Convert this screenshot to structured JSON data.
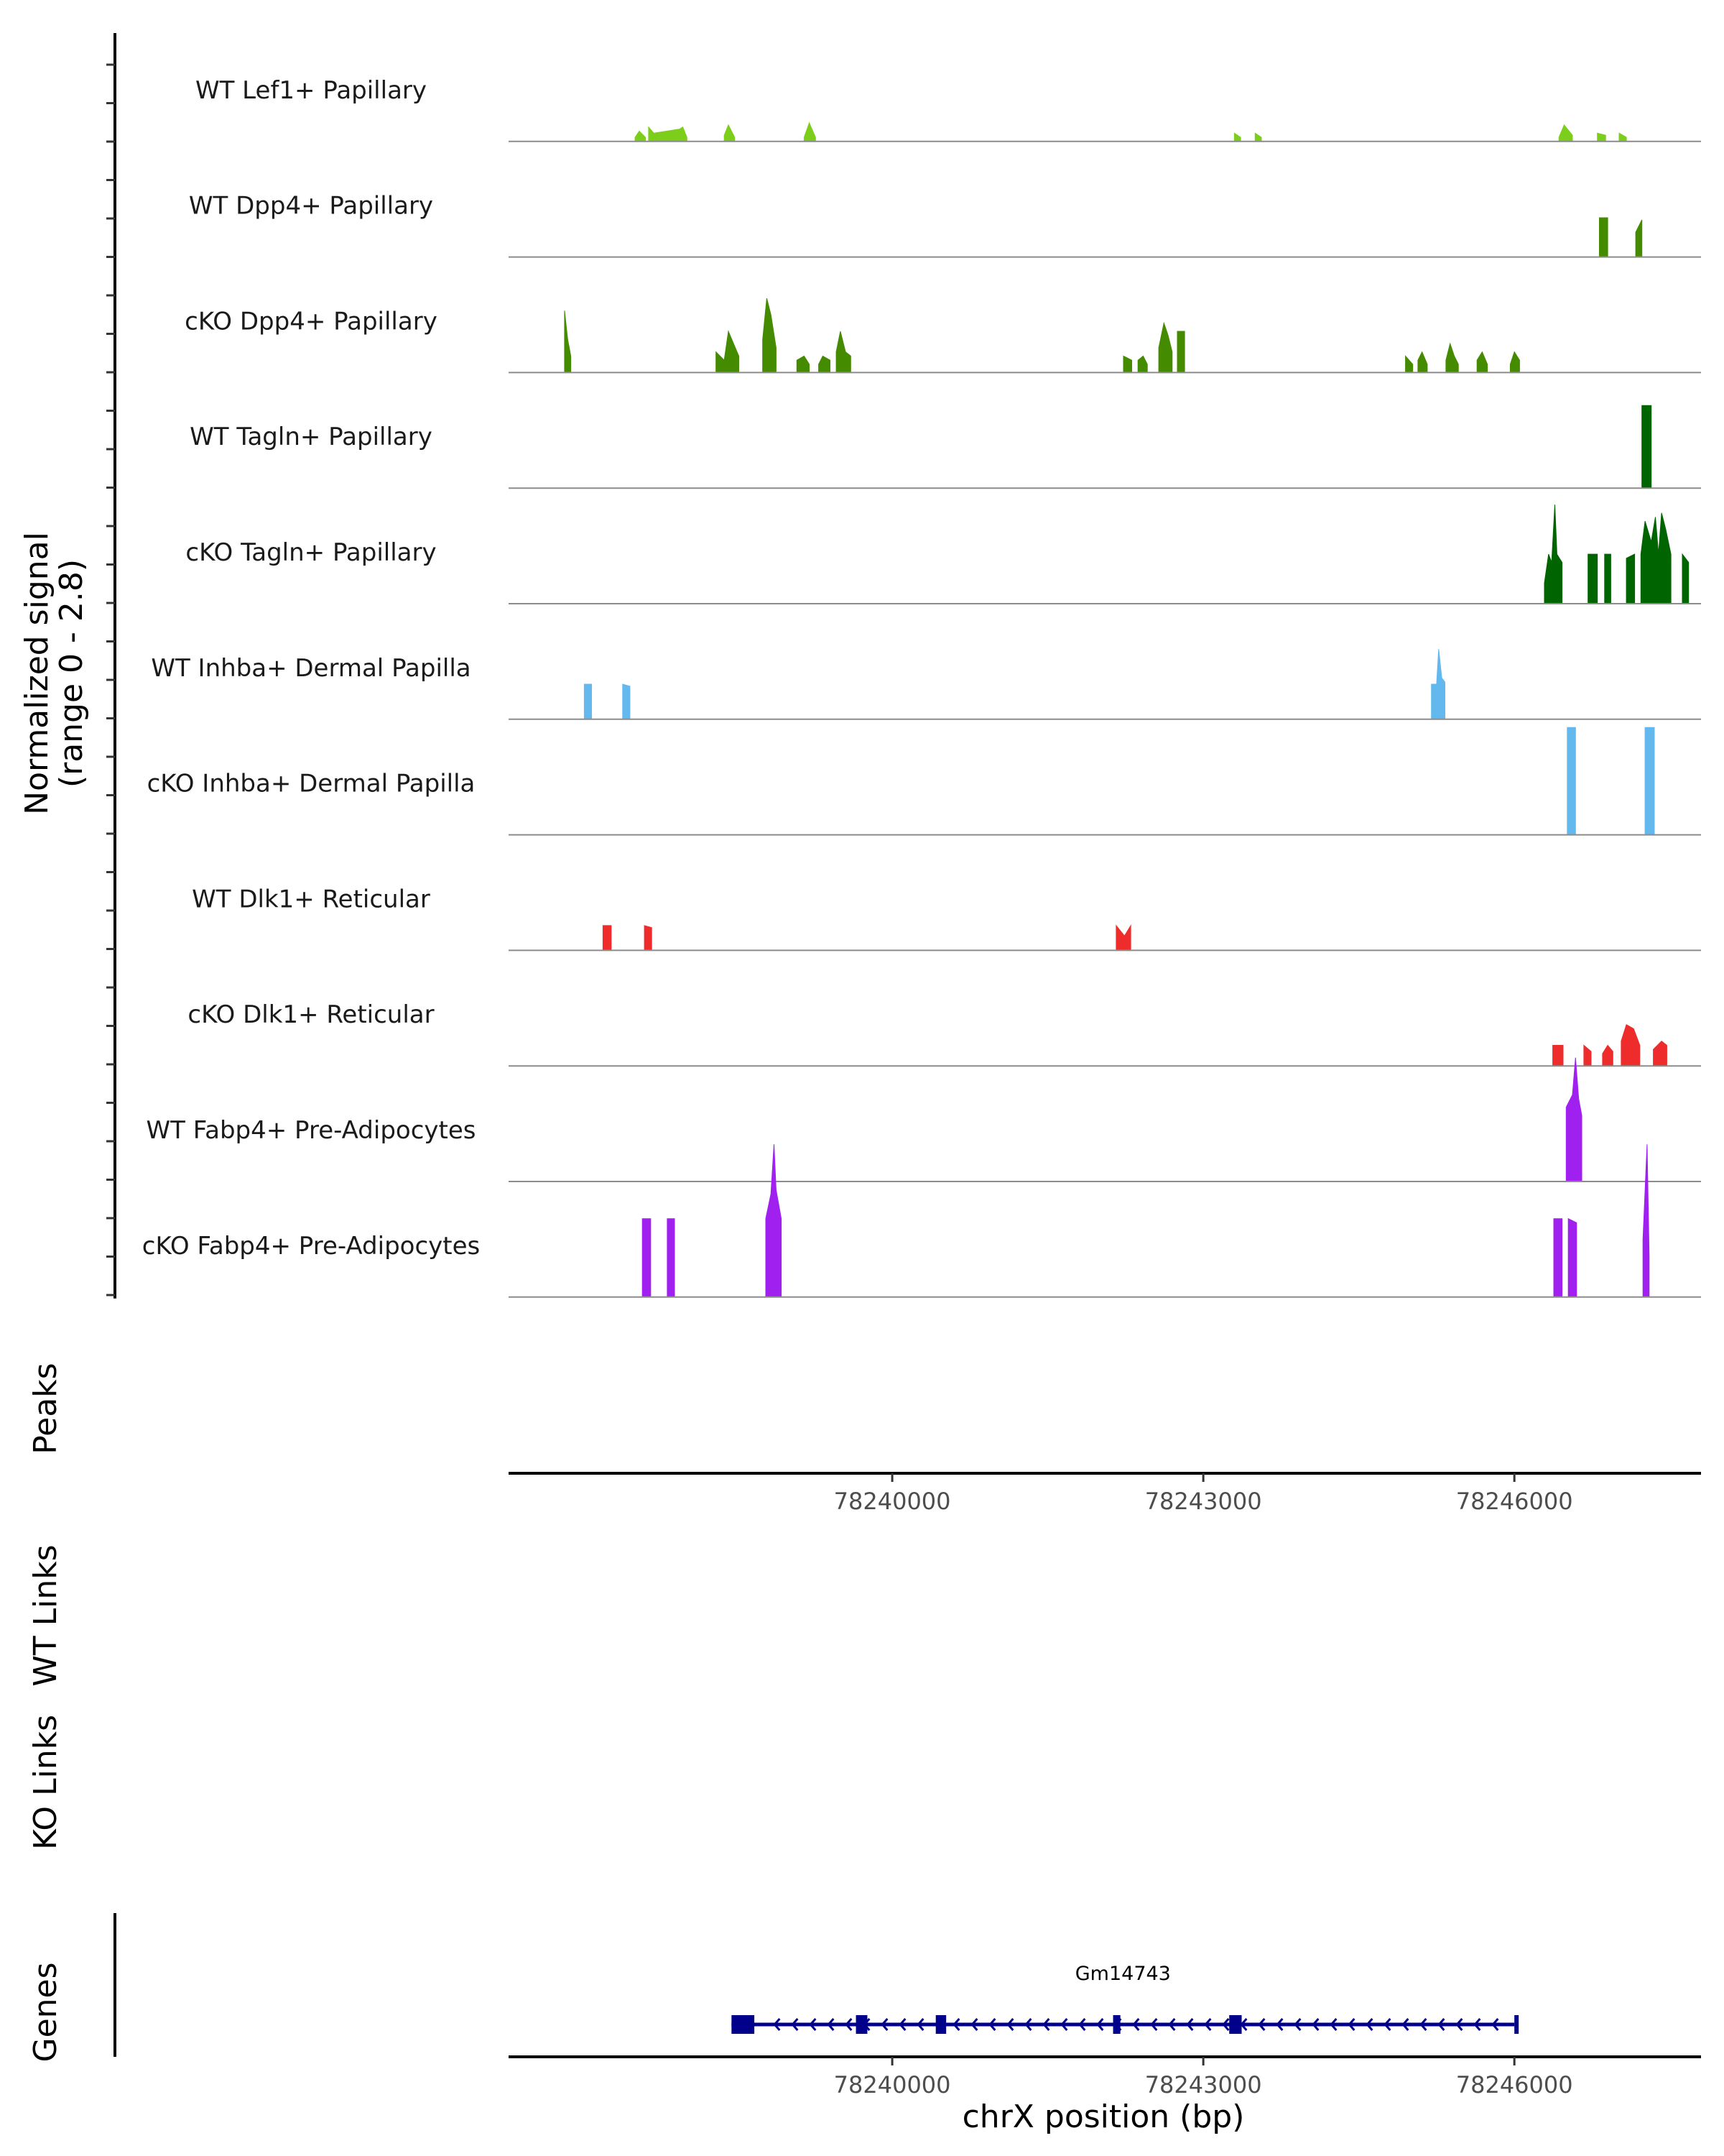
{
  "chart_data": {
    "type": "coverage",
    "ylabel_line1": "Normalized signal",
    "ylabel_line2": "(range 0 - 2.8)",
    "ymax": 2.8,
    "xlim": [
      78236300,
      78247800
    ],
    "chromosome": "chrX",
    "xlabel": "chrX position (bp)",
    "xticks": [
      78240000,
      78243000,
      78246000
    ],
    "xtick_labels": [
      "78240000",
      "78243000",
      "78246000"
    ],
    "tracks": [
      {
        "name": "WT Lef1+ Papillary",
        "color": "#7CCD1C",
        "segments": [
          [
            [
              78237520,
              0.1
            ],
            [
              78237560,
              0.25
            ],
            [
              78237620,
              0.1
            ]
          ],
          [
            [
              78237650,
              0.35
            ],
            [
              78237700,
              0.2
            ],
            [
              78237950,
              0.3
            ],
            [
              78237980,
              0.35
            ],
            [
              78238020,
              0.1
            ]
          ],
          [
            [
              78238380,
              0.15
            ],
            [
              78238420,
              0.4
            ],
            [
              78238480,
              0.1
            ]
          ],
          [
            [
              78239150,
              0.1
            ],
            [
              78239200,
              0.45
            ],
            [
              78239260,
              0.1
            ]
          ],
          [
            [
              78243300,
              0.2
            ],
            [
              78243360,
              0.1
            ]
          ],
          [
            [
              78243500,
              0.2
            ],
            [
              78243560,
              0.1
            ]
          ],
          [
            [
              78246430,
              0.1
            ],
            [
              78246480,
              0.4
            ],
            [
              78246560,
              0.15
            ]
          ],
          [
            [
              78246800,
              0.2
            ],
            [
              78246880,
              0.15
            ]
          ],
          [
            [
              78247010,
              0.2
            ],
            [
              78247080,
              0.1
            ]
          ]
        ]
      },
      {
        "name": "WT Dpp4+ Papillary",
        "color": "#458B00",
        "segments": [
          [
            [
              78246820,
              0.95
            ],
            [
              78246900,
              0.95
            ]
          ],
          [
            [
              78247170,
              0.6
            ],
            [
              78247230,
              0.9
            ]
          ]
        ]
      },
      {
        "name": "cKO Dpp4+ Papillary",
        "color": "#458B00",
        "segments": [
          [
            [
              78236840,
              1.5
            ],
            [
              78236870,
              0.8
            ],
            [
              78236900,
              0.4
            ]
          ],
          [
            [
              78238300,
              0.5
            ],
            [
              78238380,
              0.3
            ],
            [
              78238420,
              1.0
            ],
            [
              78238470,
              0.7
            ],
            [
              78238520,
              0.4
            ]
          ],
          [
            [
              78238750,
              0.8
            ],
            [
              78238790,
              1.8
            ],
            [
              78238830,
              1.4
            ],
            [
              78238880,
              0.6
            ]
          ],
          [
            [
              78239080,
              0.3
            ],
            [
              78239150,
              0.4
            ],
            [
              78239200,
              0.2
            ]
          ],
          [
            [
              78239290,
              0.2
            ],
            [
              78239330,
              0.4
            ],
            [
              78239400,
              0.3
            ]
          ],
          [
            [
              78239460,
              0.5
            ],
            [
              78239500,
              1.0
            ],
            [
              78239550,
              0.5
            ],
            [
              78239600,
              0.4
            ]
          ],
          [
            [
              78242230,
              0.4
            ],
            [
              78242310,
              0.3
            ]
          ],
          [
            [
              78242370,
              0.3
            ],
            [
              78242420,
              0.4
            ],
            [
              78242460,
              0.2
            ]
          ],
          [
            [
              78242570,
              0.6
            ],
            [
              78242620,
              1.2
            ],
            [
              78242660,
              0.9
            ],
            [
              78242700,
              0.5
            ]
          ],
          [
            [
              78242750,
              1.0
            ],
            [
              78242820,
              1.0
            ]
          ],
          [
            [
              78244950,
              0.4
            ],
            [
              78245020,
              0.2
            ]
          ],
          [
            [
              78245070,
              0.3
            ],
            [
              78245110,
              0.5
            ],
            [
              78245160,
              0.2
            ]
          ],
          [
            [
              78245340,
              0.3
            ],
            [
              78245380,
              0.7
            ],
            [
              78245420,
              0.4
            ],
            [
              78245460,
              0.2
            ]
          ],
          [
            [
              78245640,
              0.3
            ],
            [
              78245690,
              0.5
            ],
            [
              78245740,
              0.2
            ]
          ],
          [
            [
              78245960,
              0.2
            ],
            [
              78246000,
              0.5
            ],
            [
              78246050,
              0.3
            ]
          ]
        ]
      },
      {
        "name": "WT Tagln+ Papillary",
        "color": "#006400",
        "segments": [
          [
            [
              78247230,
              2.0
            ],
            [
              78247320,
              2.0
            ]
          ]
        ]
      },
      {
        "name": "cKO Tagln+ Papillary",
        "color": "#006400",
        "segments": [
          [
            [
              78246290,
              0.5
            ],
            [
              78246330,
              1.2
            ],
            [
              78246360,
              1.0
            ],
            [
              78246390,
              2.4
            ],
            [
              78246410,
              1.2
            ],
            [
              78246460,
              1.0
            ]
          ],
          [
            [
              78246710,
              1.2
            ],
            [
              78246800,
              1.2
            ]
          ],
          [
            [
              78246870,
              1.2
            ],
            [
              78246930,
              1.2
            ]
          ],
          [
            [
              78247080,
              1.1
            ],
            [
              78247160,
              1.2
            ]
          ],
          [
            [
              78247220,
              1.2
            ],
            [
              78247260,
              2.0
            ],
            [
              78247320,
              1.5
            ],
            [
              78247360,
              2.1
            ],
            [
              78247390,
              1.2
            ],
            [
              78247420,
              2.2
            ],
            [
              78247460,
              1.8
            ],
            [
              78247510,
              1.2
            ]
          ],
          [
            [
              78247620,
              1.2
            ],
            [
              78247680,
              1.0
            ]
          ]
        ]
      },
      {
        "name": "WT Inhba+ Dermal Papilla",
        "color": "#63B8EE",
        "segments": [
          [
            [
              78237030,
              0.85
            ],
            [
              78237100,
              0.85
            ]
          ],
          [
            [
              78237400,
              0.85
            ],
            [
              78237470,
              0.8
            ]
          ],
          [
            [
              78245200,
              0.85
            ],
            [
              78245250,
              0.85
            ],
            [
              78245270,
              1.7
            ],
            [
              78245300,
              1.0
            ],
            [
              78245330,
              0.9
            ]
          ]
        ]
      },
      {
        "name": "cKO Inhba+ Dermal Papilla",
        "color": "#63B8EE",
        "segments": [
          [
            [
              78246510,
              2.6
            ],
            [
              78246590,
              2.6
            ]
          ],
          [
            [
              78247260,
              2.6
            ],
            [
              78247350,
              2.6
            ]
          ]
        ]
      },
      {
        "name": "WT Dlk1+ Reticular",
        "color": "#EE2C2C",
        "segments": [
          [
            [
              78237210,
              0.6
            ],
            [
              78237290,
              0.6
            ]
          ],
          [
            [
              78237610,
              0.6
            ],
            [
              78237680,
              0.55
            ]
          ],
          [
            [
              78242160,
              0.6
            ],
            [
              78242240,
              0.35
            ],
            [
              78242300,
              0.6
            ]
          ]
        ]
      },
      {
        "name": "cKO Dlk1+ Reticular",
        "color": "#EE2C2C",
        "segments": [
          [
            [
              78246370,
              0.5
            ],
            [
              78246470,
              0.5
            ]
          ],
          [
            [
              78246670,
              0.5
            ],
            [
              78246740,
              0.35
            ]
          ],
          [
            [
              78246850,
              0.3
            ],
            [
              78246900,
              0.5
            ],
            [
              78246950,
              0.35
            ]
          ],
          [
            [
              78247030,
              0.6
            ],
            [
              78247080,
              1.0
            ],
            [
              78247150,
              0.9
            ],
            [
              78247210,
              0.5
            ]
          ],
          [
            [
              78247340,
              0.4
            ],
            [
              78247420,
              0.6
            ],
            [
              78247470,
              0.5
            ]
          ]
        ]
      },
      {
        "name": "WT Fabp4+ Pre-Adipocytes",
        "color": "#A020F0",
        "segments": [
          [
            [
              78246500,
              1.8
            ],
            [
              78246560,
              2.1
            ],
            [
              78246590,
              3.0
            ],
            [
              78246620,
              2.0
            ],
            [
              78246650,
              1.6
            ]
          ]
        ]
      },
      {
        "name": "cKO Fabp4+ Pre-Adipocytes",
        "color": "#A020F0",
        "segments": [
          [
            [
              78237590,
              1.9
            ],
            [
              78237670,
              1.9
            ]
          ],
          [
            [
              78237830,
              1.9
            ],
            [
              78237900,
              1.9
            ]
          ],
          [
            [
              78238780,
              1.9
            ],
            [
              78238830,
              2.5
            ],
            [
              78238860,
              3.7
            ],
            [
              78238880,
              2.6
            ],
            [
              78238930,
              1.9
            ]
          ],
          [
            [
              78246380,
              1.9
            ],
            [
              78246460,
              1.9
            ]
          ],
          [
            [
              78246520,
              1.9
            ],
            [
              78246600,
              1.8
            ]
          ],
          [
            [
              78247240,
              1.4
            ],
            [
              78247280,
              3.7
            ],
            [
              78247300,
              1.0
            ]
          ]
        ]
      }
    ],
    "panel_titles": {
      "peaks": "Peaks",
      "wt_links": "WT Links",
      "ko_links": "KO Links",
      "genes": "Genes"
    },
    "gene": {
      "name": "Gm14743",
      "start": 78238450,
      "end": 78246000,
      "strand": "-",
      "exons": [
        [
          78238450,
          78238670
        ],
        [
          78239650,
          78239760
        ],
        [
          78240420,
          78240520
        ],
        [
          78242130,
          78242200
        ],
        [
          78243250,
          78243370
        ],
        [
          78246000,
          78246030
        ]
      ]
    }
  }
}
